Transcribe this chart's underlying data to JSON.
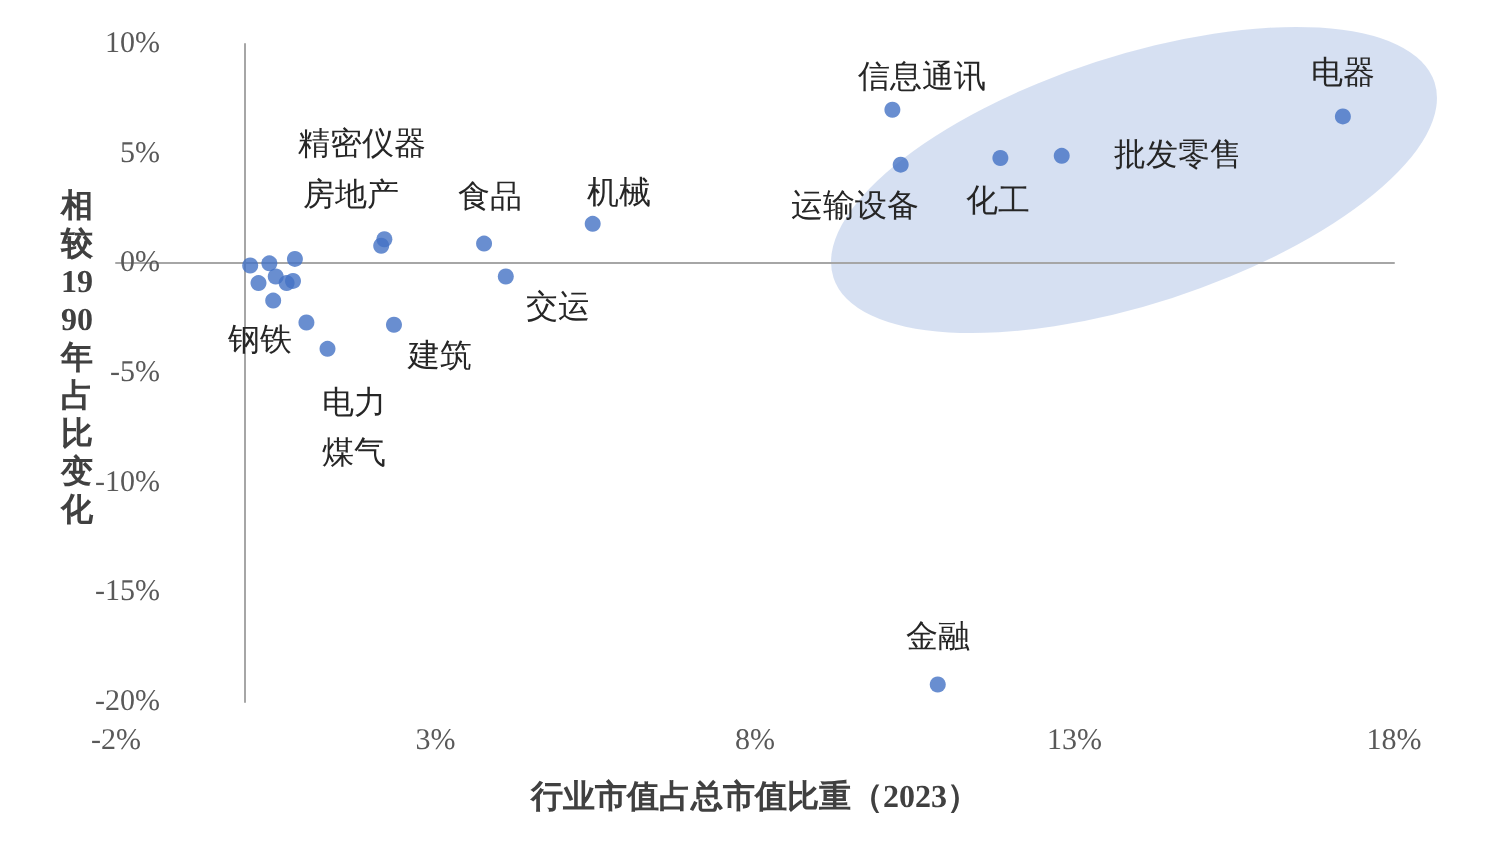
{
  "chart_data": {
    "type": "scatter",
    "xlabel": "行业市值占总市值比重（2023）",
    "ylabel": "相较1990年占比变化",
    "color": "#4472c4",
    "marker": "circle",
    "x": [
      0.1,
      0.23,
      0.4,
      0.5,
      0.67,
      0.77,
      0.8,
      0.46,
      0.98,
      1.31,
      2.15,
      2.2,
      2.35,
      3.76,
      4.1,
      5.46,
      10.15,
      10.28,
      11.84,
      12.8,
      17.2,
      10.86
    ],
    "values": [
      -0.1,
      -0.9,
      0,
      -0.6,
      -0.9,
      -0.8,
      0.2,
      -1.7,
      -2.7,
      -3.9,
      0.8,
      1.1,
      -2.8,
      0.9,
      -0.6,
      1.8,
      7,
      4.5,
      4.8,
      4.9,
      6.7,
      -19.2
    ],
    "xlim": [
      -2,
      18
    ],
    "xticks": [
      {
        "value": -2,
        "label": "-2%"
      },
      {
        "value": 3,
        "label": "3%"
      },
      {
        "value": 8,
        "label": "8%"
      },
      {
        "value": 13,
        "label": "13%"
      },
      {
        "value": 18,
        "label": "18%"
      }
    ],
    "ylim": [
      -20,
      10
    ],
    "yticks": [
      {
        "value": -20,
        "label": "-20%"
      },
      {
        "value": -15,
        "label": "-15%"
      },
      {
        "value": -10,
        "label": "-10%"
      },
      {
        "value": -5,
        "label": "-5%"
      },
      {
        "value": 0,
        "label": "0%"
      },
      {
        "value": 5,
        "label": "5%"
      },
      {
        "value": 10,
        "label": "10%"
      }
    ],
    "annotations": [
      {
        "text": "信息通讯",
        "x": 10.15,
        "y": 7
      },
      {
        "text": "运输设备",
        "x": 10.28,
        "y": 4.5
      },
      {
        "text": "化工",
        "x": 11.84,
        "y": 4.8
      },
      {
        "text": "批发零售",
        "x": 12.8,
        "y": 4.9
      },
      {
        "text": "电器",
        "x": 17.2,
        "y": 6.7
      },
      {
        "text": "精密仪器",
        "x": 2.2,
        "y": 1.1
      },
      {
        "text": "房地产",
        "x": 2.15,
        "y": 0.8
      },
      {
        "text": "食品",
        "x": 3.76,
        "y": 0.9
      },
      {
        "text": "机械",
        "x": 5.46,
        "y": 1.8
      },
      {
        "text": "交运",
        "x": 4.1,
        "y": -0.6
      },
      {
        "text": "钢铁",
        "x": 0.98,
        "y": -2.7
      },
      {
        "text": "建筑",
        "x": 2.35,
        "y": -2.8
      },
      {
        "text": "电力煤气",
        "x": 1.31,
        "y": -3.9
      },
      {
        "text": "金融",
        "x": 10.86,
        "y": -19.2
      }
    ]
  }
}
